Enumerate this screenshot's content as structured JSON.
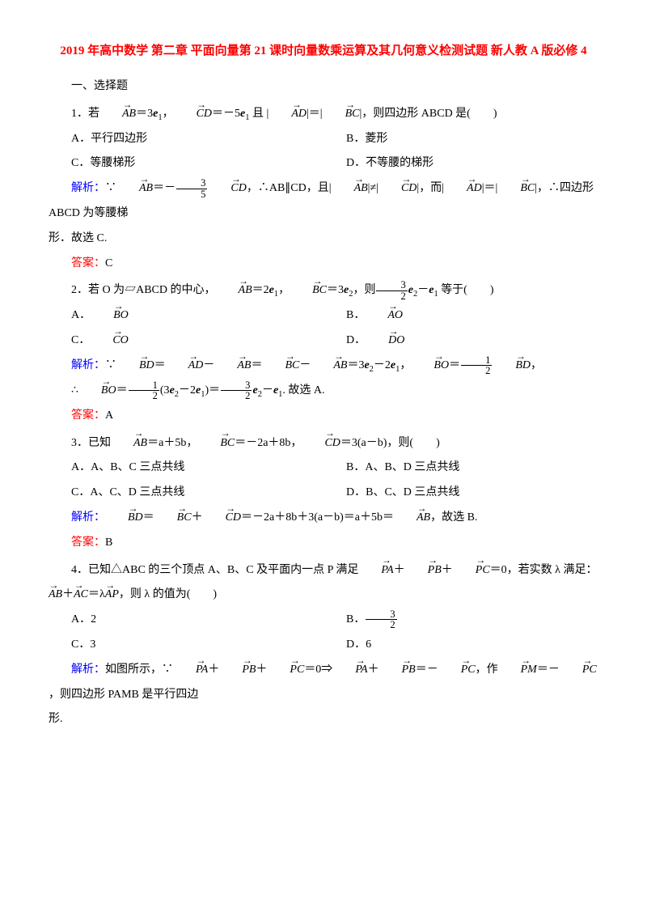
{
  "colors": {
    "title": "#ff0000",
    "analysis": "#0000ff",
    "answer": "#ff0000",
    "text": "#000000",
    "background": "#ffffff"
  },
  "typography": {
    "body_fontsize": 14,
    "title_fontsize": 15,
    "line_height": 2.2,
    "font_family": "SimSun"
  },
  "title": "2019 年高中数学 第二章 平面向量第 21 课时向量数乘运算及其几何意义检测试题 新人教 A 版必修 4",
  "section1": "一、选择题",
  "q1": {
    "stem_pre": "1．若",
    "stem_mid1": "＝3",
    "stem_mid2": "，",
    "stem_mid3": "＝－5",
    "stem_mid4": " 且 |",
    "stem_mid5": "|＝|",
    "stem_end": "|，则四边形 ABCD 是(　　)",
    "optA": "A．平行四边形",
    "optB": "B．菱形",
    "optC": "C．等腰梯形",
    "optD": "D．不等腰的梯形",
    "analysis_label": "解析：",
    "analysis_p1_a": "∵",
    "analysis_p1_b": "＝－",
    "analysis_p1_c": "，∴AB∥CD，且|",
    "analysis_p1_d": "|≠|",
    "analysis_p1_e": "|，而|",
    "analysis_p1_f": "|＝|",
    "analysis_p1_g": "|，∴四边形 ABCD 为等腰梯",
    "analysis_p2": "形．故选 C.",
    "answer_label": "答案：",
    "answer": "C"
  },
  "q2": {
    "stem_pre": "2．若 O 为▱ABCD 的中心，",
    "stem_m1": "＝2",
    "stem_m2": "，",
    "stem_m3": "＝3",
    "stem_m4": "，则",
    "stem_m5": "－",
    "stem_end": " 等于(　　)",
    "optA_pre": "A．",
    "optB_pre": "B．",
    "optC_pre": "C．",
    "optD_pre": "D．",
    "analysis_label": "解析：",
    "ana_a": "∵",
    "ana_b": "＝",
    "ana_c": "－",
    "ana_d": "＝",
    "ana_e": "－",
    "ana_f": "＝3",
    "ana_g": "－2",
    "ana_h": "，",
    "ana_i": "＝",
    "ana_j": "，",
    "ana2_a": "∴",
    "ana2_b": "＝",
    "ana2_c": "(3",
    "ana2_d": "－2",
    "ana2_e": ")＝",
    "ana2_f": "－",
    "ana2_g": ". 故选 A.",
    "answer_label": "答案：",
    "answer": "A"
  },
  "q3": {
    "stem_pre": "3．已知",
    "stem_m1": "＝a＋5b，",
    "stem_m2": "＝－2a＋8b，",
    "stem_m3": "＝3(a－b)，则(　　)",
    "optA": "A．A、B、C 三点共线",
    "optB": "B．A、B、D 三点共线",
    "optC": "C．A、C、D 三点共线",
    "optD": "D．B、C、D 三点共线",
    "analysis_label": "解析：",
    "ana_a": "＝",
    "ana_b": "＋",
    "ana_c": "＝－2a＋8b＋3(a－b)＝a＋5b＝",
    "ana_d": "，故选 B.",
    "answer_label": "答案：",
    "answer": "B"
  },
  "q4": {
    "stem_pre": "4．已知△ABC 的三个顶点 A、B、C 及平面内一点 P 满足",
    "stem_m1": "＋",
    "stem_m2": "＋",
    "stem_m3": "＝0，若实数 λ 满足：",
    "stem2_a": "＋",
    "stem2_b": "＝λ",
    "stem2_c": "，则 λ 的值为(　　)",
    "optA": "A．2",
    "optB_pre": "B．",
    "optC": "C．3",
    "optD": "D．6",
    "analysis_label": "解析：",
    "ana_a": "如图所示，∵",
    "ana_b": "＋",
    "ana_c": "＋",
    "ana_d": "＝0⇒",
    "ana_e": "＋",
    "ana_f": "＝－",
    "ana_g": "，作",
    "ana_h": "＝－",
    "ana_i": "，则四边形 PAMB 是平行四边",
    "ana2": "形."
  },
  "math": {
    "e1": "e",
    "sub1": "1",
    "sub2": "2",
    "frac_3_5_n": "3",
    "frac_3_5_d": "5",
    "frac_3_2_n": "3",
    "frac_3_2_d": "2",
    "frac_1_2_n": "1",
    "frac_1_2_d": "2",
    "AB": "AB",
    "CD": "CD",
    "AD": "AD",
    "BC": "BC",
    "BO": "BO",
    "AO": "AO",
    "CO": "CO",
    "DO": "DO",
    "BD": "BD",
    "PA": "PA",
    "PB": "PB",
    "PC": "PC",
    "AC": "AC",
    "AP": "AP",
    "PM": "PM"
  }
}
